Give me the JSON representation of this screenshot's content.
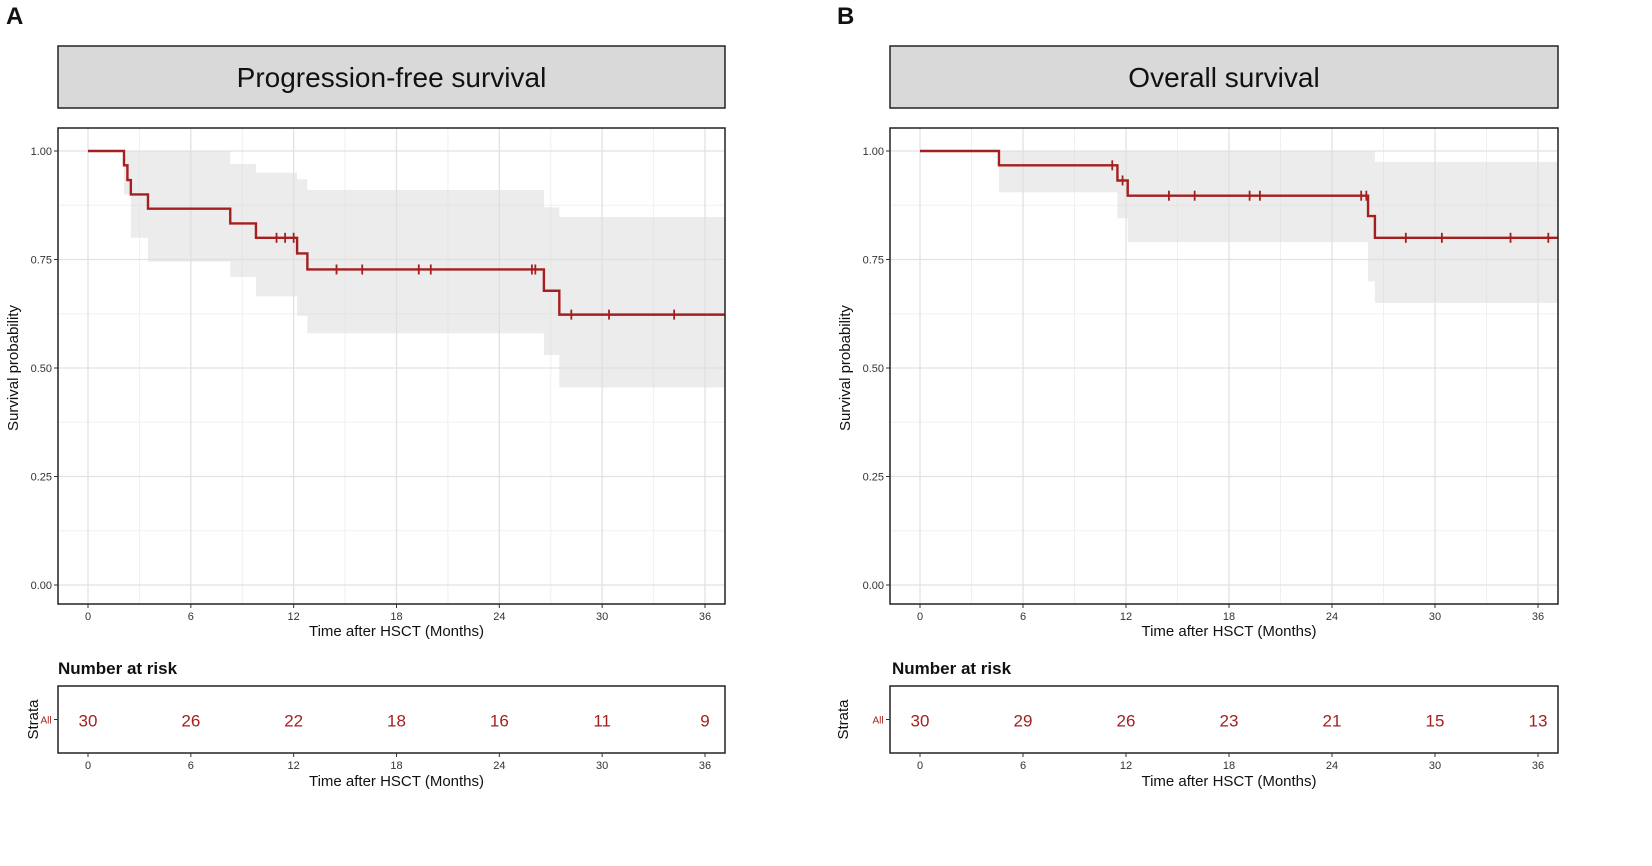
{
  "chart_data": [
    {
      "panel": "A",
      "type": "line",
      "title": "Progression-free survival",
      "xlabel": "Time after HSCT (Months)",
      "ylabel": "Survival probability",
      "xlim": [
        0,
        37.5
      ],
      "ylim": [
        0,
        1.0
      ],
      "xticks": [
        0,
        6,
        12,
        18,
        24,
        30,
        36
      ],
      "xtick_labels": [
        "0",
        "6",
        "12",
        "18",
        "24",
        "30",
        "36"
      ],
      "yticks": [
        0,
        0.25,
        0.5,
        0.75,
        1.0
      ],
      "ytick_labels": [
        "0.00",
        "0.25",
        "0.50",
        "0.75",
        "1.00"
      ],
      "grid": true,
      "series": [
        {
          "name": "All",
          "steps": [
            {
              "t": 0,
              "s": 1.0
            },
            {
              "t": 2.1,
              "s": 0.967
            },
            {
              "t": 2.3,
              "s": 0.933
            },
            {
              "t": 2.5,
              "s": 0.9
            },
            {
              "t": 3.5,
              "s": 0.867
            },
            {
              "t": 8.3,
              "s": 0.833
            },
            {
              "t": 9.8,
              "s": 0.8
            },
            {
              "t": 12.2,
              "s": 0.764
            },
            {
              "t": 12.8,
              "s": 0.727
            },
            {
              "t": 26.6,
              "s": 0.678
            },
            {
              "t": 27.5,
              "s": 0.623
            }
          ],
          "end_t": 37.5,
          "ci": [
            {
              "t": 0,
              "lo": 1.0,
              "hi": 1.0
            },
            {
              "t": 2.1,
              "lo": 0.9,
              "hi": 1.0
            },
            {
              "t": 2.5,
              "lo": 0.8,
              "hi": 1.0
            },
            {
              "t": 3.5,
              "lo": 0.745,
              "hi": 1.0
            },
            {
              "t": 8.3,
              "lo": 0.71,
              "hi": 0.97
            },
            {
              "t": 9.8,
              "lo": 0.665,
              "hi": 0.95
            },
            {
              "t": 12.2,
              "lo": 0.62,
              "hi": 0.935
            },
            {
              "t": 12.8,
              "lo": 0.58,
              "hi": 0.91
            },
            {
              "t": 26.6,
              "lo": 0.53,
              "hi": 0.87
            },
            {
              "t": 27.5,
              "lo": 0.455,
              "hi": 0.848
            }
          ],
          "censored": [
            11,
            11.5,
            12,
            14.5,
            16,
            19.3,
            20,
            25.9,
            26.1,
            28.2,
            30.4,
            34.2
          ]
        }
      ],
      "risk_table": {
        "heading": "Number at risk",
        "strata_title": "Strata",
        "strata_label": "All",
        "times": [
          0,
          6,
          12,
          18,
          24,
          30,
          36
        ],
        "values": [
          "30",
          "26",
          "22",
          "18",
          "16",
          "11",
          "9"
        ]
      }
    },
    {
      "panel": "B",
      "type": "line",
      "title": "Overall survival",
      "xlabel": "Time after HSCT (Months)",
      "ylabel": "Survival probability",
      "xlim": [
        0,
        37.5
      ],
      "ylim": [
        0,
        1.0
      ],
      "xticks": [
        0,
        6,
        12,
        18,
        24,
        30,
        36
      ],
      "xtick_labels": [
        "0",
        "6",
        "12",
        "18",
        "24",
        "30",
        "36"
      ],
      "yticks": [
        0,
        0.25,
        0.5,
        0.75,
        1.0
      ],
      "ytick_labels": [
        "0.00",
        "0.25",
        "0.50",
        "0.75",
        "1.00"
      ],
      "grid": true,
      "series": [
        {
          "name": "All",
          "steps": [
            {
              "t": 0,
              "s": 1.0
            },
            {
              "t": 4.6,
              "s": 0.967
            },
            {
              "t": 11.5,
              "s": 0.932
            },
            {
              "t": 12.1,
              "s": 0.897
            },
            {
              "t": 26.1,
              "s": 0.85
            },
            {
              "t": 26.5,
              "s": 0.8
            }
          ],
          "end_t": 37.5,
          "ci": [
            {
              "t": 0,
              "lo": 1.0,
              "hi": 1.0
            },
            {
              "t": 4.6,
              "lo": 0.905,
              "hi": 1.0
            },
            {
              "t": 11.5,
              "lo": 0.845,
              "hi": 1.0
            },
            {
              "t": 12.1,
              "lo": 0.79,
              "hi": 1.0
            },
            {
              "t": 26.1,
              "lo": 0.7,
              "hi": 1.0
            },
            {
              "t": 26.5,
              "lo": 0.65,
              "hi": 0.975
            }
          ],
          "censored": [
            11.2,
            11.8,
            14.5,
            16,
            19.2,
            19.8,
            25.7,
            26,
            28.3,
            30.4,
            34.4,
            36.6
          ]
        }
      ],
      "risk_table": {
        "heading": "Number at risk",
        "strata_title": "Strata",
        "strata_label": "All",
        "times": [
          0,
          6,
          12,
          18,
          24,
          30,
          36
        ],
        "values": [
          "30",
          "29",
          "26",
          "23",
          "21",
          "15",
          "13"
        ]
      }
    }
  ],
  "colors": {
    "curve": "#a51f1f",
    "risk_text": "#a51f1f",
    "ci_band": "#dcdcdc",
    "strip_fill": "#d9d9d9",
    "grid_major": "#e2e2e2",
    "grid_minor": "#f0f0f0"
  }
}
